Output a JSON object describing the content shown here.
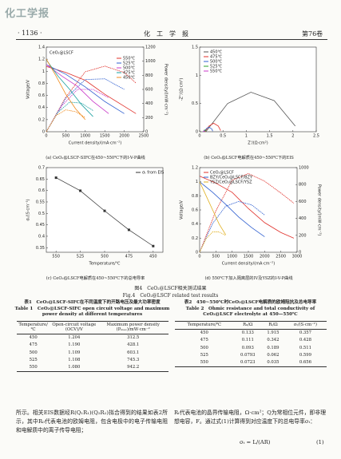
{
  "header": {
    "logo": "化工学报",
    "page": "· 1136 ·",
    "journal": "化　工　学　报",
    "volume": "第76卷"
  },
  "figures": [
    {
      "caption": "(a) CeO₂@LSCF-SIFC在450~550℃下的I-V-P曲线",
      "chart": {
        "type": "line",
        "label": "CeO₂@LSCF",
        "xlabel": "Current density/(mA·cm⁻²)",
        "ylabel": "Voltage/V",
        "y2label": "Power density/(mW·cm⁻²)",
        "xlim": [
          0,
          2500
        ],
        "xticks": [
          0,
          500,
          1000,
          1500,
          2000,
          2500
        ],
        "ylim": [
          0,
          1.4
        ],
        "yticks": [
          0,
          0.2,
          0.4,
          0.6,
          0.8,
          1.0,
          1.2,
          1.4
        ],
        "y2lim": [
          0,
          1200
        ],
        "y2ticks": [
          0,
          200,
          400,
          600,
          800,
          1000,
          1200
        ],
        "legend": "upper right",
        "series": [
          {
            "name": "550℃",
            "color": "#e0302a",
            "x": [
              0,
              500,
              1000,
              1500,
              2000,
              2300
            ],
            "values": [
              1.08,
              0.98,
              0.85,
              0.62,
              0.42,
              0.3
            ],
            "power": [
              0,
              490,
              850,
              930,
              840,
              690
            ]
          },
          {
            "name": "525℃",
            "color": "#2f5fd0",
            "x": [
              0,
              500,
              1000,
              1500,
              2000
            ],
            "values": [
              1.11,
              0.95,
              0.74,
              0.5,
              0.3
            ],
            "power": [
              0,
              475,
              740,
              750,
              600
            ]
          },
          {
            "name": "500℃",
            "color": "#c838c8",
            "x": [
              0,
              400,
              800,
              1200,
              1600
            ],
            "values": [
              1.11,
              0.92,
              0.75,
              0.5,
              0.3
            ],
            "power": [
              0,
              368,
              600,
              600,
              480
            ]
          },
          {
            "name": "475℃",
            "color": "#1aa0a0",
            "x": [
              0,
              300,
              600,
              900,
              1200
            ],
            "values": [
              1.19,
              0.92,
              0.7,
              0.45,
              0.25
            ],
            "power": [
              0,
              276,
              420,
              405,
              300
            ]
          },
          {
            "name": "450℃",
            "color": "#f08a1c",
            "x": [
              0,
              250,
              500,
              750,
              1000
            ],
            "values": [
              1.2,
              0.92,
              0.62,
              0.38,
              0.2
            ],
            "power": [
              0,
              230,
              310,
              285,
              200
            ]
          }
        ]
      }
    },
    {
      "caption": "(b) CeO₂@LSCF电解质在450~550℃下的EIS",
      "chart": {
        "type": "line",
        "xlabel": "Z'/(Ω·cm²)",
        "ylabel": "-Z''/(Ω·cm²)",
        "xlim": [
          0,
          2.5
        ],
        "xticks": [
          0,
          0.5,
          1.0,
          1.5,
          2.0,
          2.5
        ],
        "ylim": [
          0,
          1.5
        ],
        "yticks": [
          0,
          0.5,
          1.0,
          1.5
        ],
        "legend": "upper left",
        "series": [
          {
            "name": "450℃",
            "color": "#555555",
            "x": [
              0.133,
              0.6,
              1.1,
              1.6,
              2.05
            ],
            "values": [
              0,
              0.5,
              0.7,
              0.55,
              0.1
            ]
          },
          {
            "name": "475℃",
            "color": "#e0302a",
            "x": [
              0.111,
              0.2,
              0.3,
              0.4,
              0.45
            ],
            "values": [
              0,
              0.1,
              0.15,
              0.1,
              0.02
            ]
          },
          {
            "name": "500℃",
            "color": "#2f5fd0",
            "x": [
              0.093,
              0.15,
              0.2,
              0.26,
              0.28
            ],
            "values": [
              0,
              0.06,
              0.08,
              0.05,
              0.01
            ]
          },
          {
            "name": "525℃",
            "color": "#2aa02a",
            "x": [
              0.0793,
              0.1,
              0.12,
              0.14
            ],
            "values": [
              0,
              0.03,
              0.03,
              0.01
            ]
          },
          {
            "name": "550℃",
            "color": "#c838c8",
            "x": [
              0.0723,
              0.09,
              0.1,
              0.107
            ],
            "values": [
              0,
              0.015,
              0.015,
              0.005
            ]
          }
        ]
      }
    },
    {
      "caption": "(c) CeO₂@LSCF电解质在450~550℃下的总电导率",
      "chart": {
        "type": "scatter-line",
        "xlabel": "Temperature/℃",
        "ylabel": "σₜ/(S·cm⁻¹)",
        "xlim": [
          560,
          440
        ],
        "xticks": [
          550,
          525,
          500,
          475,
          450
        ],
        "ylim": [
          0.33,
          0.7
        ],
        "yticks": [
          0.35,
          0.4,
          0.45,
          0.5,
          0.55,
          0.6,
          0.65,
          0.7
        ],
        "legend": "upper right",
        "series": [
          {
            "name": "σₜ from EIS",
            "color": "#333333",
            "x": [
              550,
              525,
              500,
              475,
              450
            ],
            "values": [
              0.656,
              0.599,
              0.511,
              0.428,
              0.357
            ]
          }
        ]
      }
    },
    {
      "caption": "(d) 550℃下加入隔离层的IV及YSZ的I-V-P曲线",
      "chart": {
        "type": "line",
        "xlabel": "Current density/(mA·cm⁻²)",
        "ylabel": "Voltage/V",
        "y2label": "Power density/(mW·cm⁻²)",
        "xlim": [
          0,
          3000
        ],
        "xticks": [
          0,
          500,
          1000,
          1500,
          2000,
          2500,
          3000
        ],
        "ylim": [
          0,
          1.2
        ],
        "yticks": [
          0,
          0.2,
          0.4,
          0.6,
          0.8,
          1.0,
          1.2
        ],
        "y2lim": [
          0,
          1000
        ],
        "y2ticks": [
          0,
          200,
          400,
          600,
          800,
          1000
        ],
        "legend": "upper left",
        "series": [
          {
            "name": "CeO₂@LSCF",
            "color": "#e0302a",
            "x": [
              0,
              500,
              1000,
              1500,
              2000,
              2500,
              2900
            ],
            "values": [
              1.08,
              0.98,
              0.85,
              0.62,
              0.42,
              0.28,
              0.2
            ],
            "power": [
              0,
              490,
              850,
              930,
              840,
              700,
              580
            ]
          },
          {
            "name": "BZY/CeO₂@LSCF/BZY",
            "color": "#2f5fd0",
            "x": [
              0,
              400,
              800,
              1200,
              1600,
              2000
            ],
            "values": [
              1.0,
              0.85,
              0.68,
              0.5,
              0.35,
              0.22
            ],
            "power": [
              0,
              340,
              544,
              600,
              560,
              440
            ]
          },
          {
            "name": "YSZ/CeO₂@LSCF/YSZ",
            "color": "#e0b020",
            "x": [
              0,
              200,
              400,
              600,
              800
            ],
            "values": [
              1.0,
              0.8,
              0.6,
              0.4,
              0.25
            ],
            "power": [
              0,
              160,
              240,
              240,
              200
            ]
          }
        ]
      }
    }
  ],
  "figure_caption": {
    "cn": "图4　CeO₂@LSCF相关测试结果",
    "en": "Fig.4　CeO₂@LSCF related test results"
  },
  "tables": [
    {
      "title_cn": "表1　CeO₂@LSCF-SIFC在不同温度下的开路电压及最大功率密度",
      "title_en": "Table 1　CeO₂@LSCF-SIFC open circuit voltage and maximum power density at different temperatures",
      "columns": [
        "Temperature/℃",
        "Open-circuit voltage (OCV)/V",
        "Maximum power density (Pₘₐₓ)/mW·cm⁻²"
      ],
      "rows": [
        [
          "450",
          "1.204",
          "312.5"
        ],
        [
          "475",
          "1.190",
          "428.1"
        ],
        [
          "500",
          "1.109",
          "603.1"
        ],
        [
          "525",
          "1.108",
          "745.3"
        ],
        [
          "550",
          "1.080",
          "942.2"
        ]
      ]
    },
    {
      "title_cn": "表2　450~550℃时CeO₂@LSCF电解质的欧姆阻抗及总电导率",
      "title_en": "Table 2　Ohmic resistance and total conductivity of CeO₂@LSCF electrolyte at 450—550℃",
      "columns": [
        "Temperature/℃",
        "R₀/Ω",
        "Rₜ/Ω",
        "σₜ/(S·cm⁻¹)"
      ],
      "rows": [
        [
          "450",
          "0.133",
          "1.915",
          "0.357"
        ],
        [
          "475",
          "0.111",
          "0.342",
          "0.428"
        ],
        [
          "500",
          "0.093",
          "0.189",
          "0.511"
        ],
        [
          "525",
          "0.0793",
          "0.062",
          "0.599"
        ],
        [
          "550",
          "0.0723",
          "0.035",
          "0.656"
        ]
      ]
    }
  ],
  "body": {
    "left": "所示。相关EIS数据经R(Q₁R₁)(Q₂R₂)拟合得到的结果如表2所示，其中R₀代表电池的欧姆电阻，包含电极中的电子传输电阻和电解质中的离子传导电阻；",
    "right": "Rₜ代表电池的晶界传输电阻，Ω·cm²；Q为常相位元件，即非理想电容，F。通过式(1)计算得到对应温度下的总电导率σₜ：",
    "equation": "σₜ = L/(AR)",
    "equation_number": "(1)"
  }
}
